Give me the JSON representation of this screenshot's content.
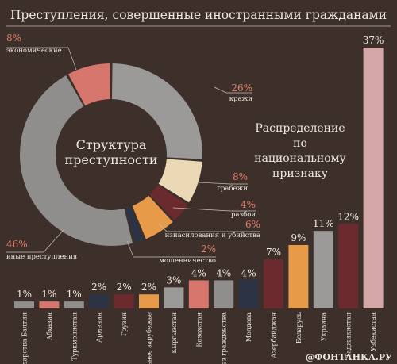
{
  "title": "Преступления, совершенные иностранными гражданами",
  "watermark": "@ФОНТАНКА.РУ",
  "colors": {
    "background": "#3d302a",
    "pct_text": "#e47f6a",
    "label_text": "#efe9e2",
    "leader_line": "#c9beb4"
  },
  "chart_data": [
    {
      "type": "pie",
      "variant": "donut",
      "center_label": [
        "Структура",
        "преступности"
      ],
      "slices": [
        {
          "label": "кражи",
          "value": 26,
          "pct": "26%",
          "color": "#9c9a98"
        },
        {
          "label": "грабежи",
          "value": 8,
          "pct": "8%",
          "color": "#ead9b4"
        },
        {
          "label": "разбои",
          "value": 4,
          "pct": "4%",
          "color": "#6b2a2d"
        },
        {
          "label": "изнасилования и убийства",
          "value": 6,
          "pct": "6%",
          "color": "#e79b49"
        },
        {
          "label": "мошенничество",
          "value": 2,
          "pct": "2%",
          "color": "#2c3345"
        },
        {
          "label": "иные преступления",
          "value": 46,
          "pct": "46%",
          "color": "#8f8e8d"
        },
        {
          "label": "экономические",
          "value": 8,
          "pct": "8%",
          "color": "#d7766c"
        }
      ]
    },
    {
      "type": "bar",
      "title": [
        "Распределение",
        "по",
        "национальному",
        "признаку"
      ],
      "categories": [
        "государства Балтии",
        "Абхазия",
        "Туркменистан",
        "Армения",
        "Грузия",
        "дальнее зарубежье",
        "Кыргызстан",
        "Казахстан",
        "без гражданства",
        "Молдова",
        "Азербайджан",
        "Беларусь",
        "Украина",
        "Таджикистан",
        "Узбекистан"
      ],
      "values": [
        1,
        1,
        1,
        2,
        2,
        2,
        3,
        4,
        4,
        4,
        7,
        9,
        11,
        12,
        37
      ],
      "value_labels": [
        "1%",
        "1%",
        "1%",
        "2%",
        "2%",
        "2%",
        "3%",
        "4%",
        "4%",
        "4%",
        "7%",
        "9%",
        "11%",
        "12%",
        "37%"
      ],
      "colors": [
        "#8f8e8d",
        "#d7766c",
        "#8f8e8d",
        "#2c3345",
        "#6b2a2d",
        "#e79b49",
        "#9c9a98",
        "#d7766c",
        "#8f8e8d",
        "#2c3345",
        "#6b2a2d",
        "#e79b49",
        "#9c9a98",
        "#6b2a2d",
        "#d4a7a7"
      ],
      "ylim": [
        0,
        37
      ]
    }
  ]
}
